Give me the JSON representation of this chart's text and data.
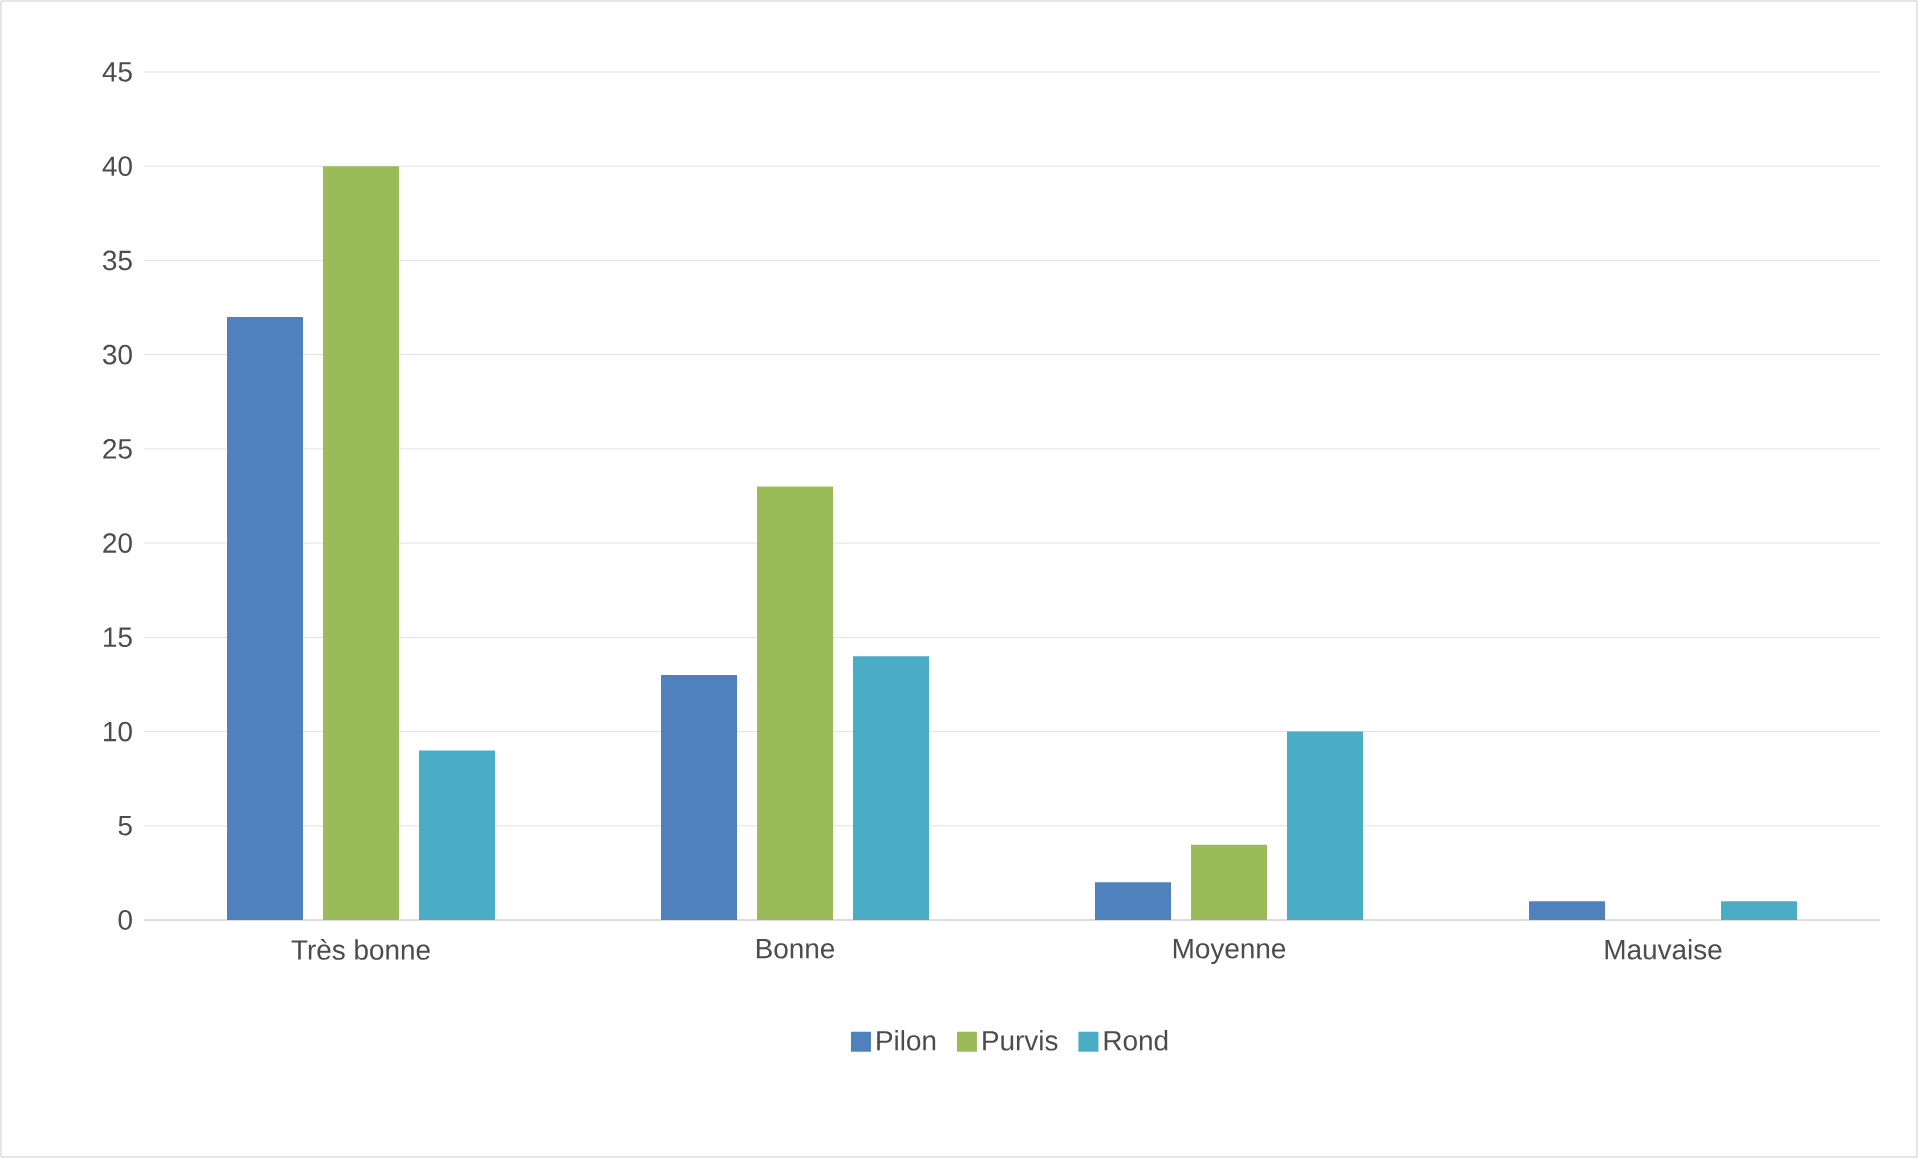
{
  "chart_data": {
    "type": "bar",
    "categories": [
      "Très bonne",
      "Bonne",
      "Moyenne",
      "Mauvaise"
    ],
    "series": [
      {
        "name": "Pilon",
        "color": "#4f81bd",
        "values": [
          32,
          13,
          2,
          1
        ]
      },
      {
        "name": "Purvis",
        "color": "#9bbb59",
        "values": [
          40,
          23,
          4,
          0
        ]
      },
      {
        "name": "Rond",
        "color": "#4bacc6",
        "values": [
          9,
          14,
          10,
          1
        ]
      }
    ],
    "ylim": [
      0,
      45
    ],
    "yticks": [
      0,
      5,
      10,
      15,
      20,
      25,
      30,
      35,
      40,
      45
    ],
    "grid": "y",
    "legend": "bottom"
  }
}
